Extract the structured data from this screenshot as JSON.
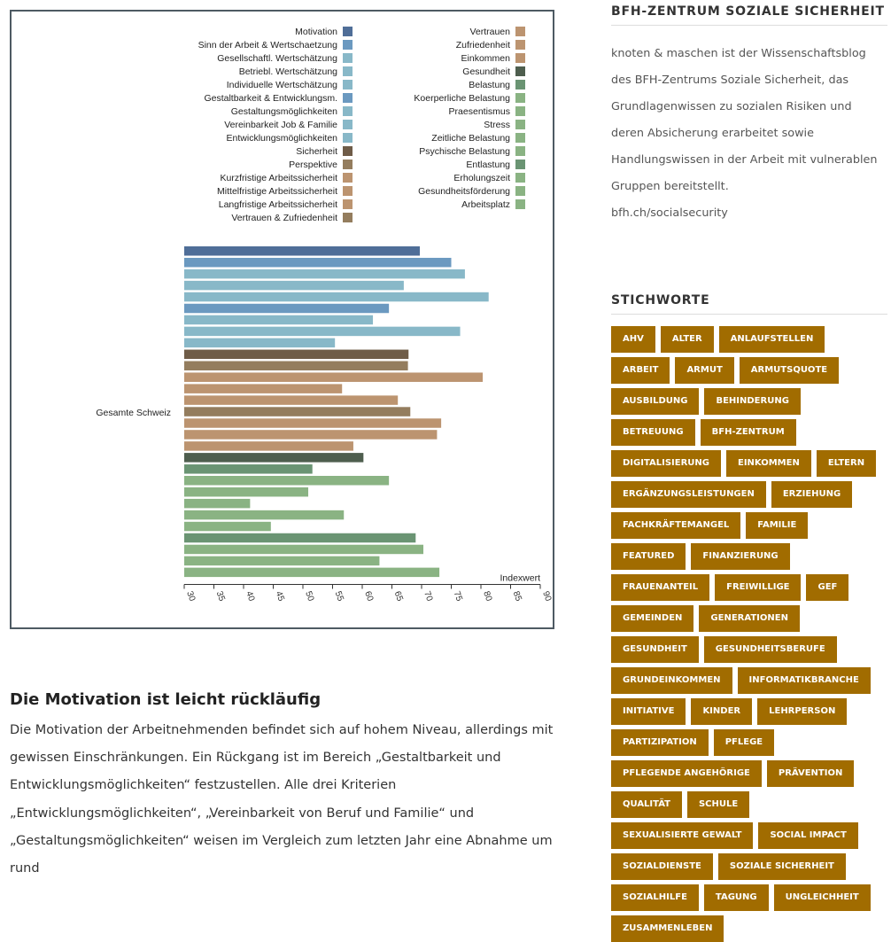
{
  "chart_data": {
    "type": "bar",
    "orientation": "horizontal",
    "y_category": "Gesamte Schweiz",
    "xlabel": "Indexwert",
    "xlim": [
      30,
      90
    ],
    "xticks": [
      "30",
      "35",
      "40",
      "45",
      "50",
      "55",
      "60",
      "65",
      "70",
      "75",
      "80",
      "85",
      "90"
    ],
    "grid": false,
    "legend_position": "top",
    "series": [
      {
        "name": "Motivation",
        "value": 69.7,
        "color": "#4f6e98"
      },
      {
        "name": "Sinn der Arbeit & Wertschaetzung",
        "value": 75,
        "color": "#6b99c0"
      },
      {
        "name": "Gesellschaftl. Wertschätzung",
        "value": 77.3,
        "color": "#88b8c8"
      },
      {
        "name": "Betriebl. Wertschätzung",
        "value": 67,
        "color": "#88b8c8"
      },
      {
        "name": "Individuelle Wertschätzung",
        "value": 81.3,
        "color": "#88b8c8"
      },
      {
        "name": "Gestaltbarkeit & Entwicklungsm.",
        "value": 64.5,
        "color": "#6b99c0"
      },
      {
        "name": "Gestaltungsmöglichkeiten",
        "value": 61.8,
        "color": "#88b8c8"
      },
      {
        "name": "Vereinbarkeit Job & Familie",
        "value": 76.5,
        "color": "#88b8c8"
      },
      {
        "name": "Entwicklungsmöglichkeiten",
        "value": 55.4,
        "color": "#88b8c8"
      },
      {
        "name": "Sicherheit",
        "value": 67.8,
        "color": "#6f5c48"
      },
      {
        "name": "Perspektive",
        "value": 67.7,
        "color": "#947d5e"
      },
      {
        "name": "Kurzfristige Arbeitssicherheit",
        "value": 80.3,
        "color": "#bc9470"
      },
      {
        "name": "Mittelfristige Arbeitssicherheit",
        "value": 56.6,
        "color": "#bc9470"
      },
      {
        "name": "Langfristige Arbeitssicherheit",
        "value": 66,
        "color": "#bc9470"
      },
      {
        "name": "Vertrauen & Zufriedenheit",
        "value": 68.1,
        "color": "#947d5e"
      },
      {
        "name": "Vertrauen",
        "value": 73.3,
        "color": "#bc9470"
      },
      {
        "name": "Zufriedenheit",
        "value": 72.6,
        "color": "#bc9470"
      },
      {
        "name": "Einkommen",
        "value": 58.5,
        "color": "#bc9470"
      },
      {
        "name": "Gesundheit",
        "value": 60.2,
        "color": "#4e5e4e"
      },
      {
        "name": "Belastung",
        "value": 51.6,
        "color": "#6a9473"
      },
      {
        "name": "Koerperliche Belastung",
        "value": 64.5,
        "color": "#8ab383"
      },
      {
        "name": "Praesentismus",
        "value": 50.9,
        "color": "#8ab383"
      },
      {
        "name": "Stress",
        "value": 41.1,
        "color": "#8ab383"
      },
      {
        "name": "Zeitliche Belastung",
        "value": 56.9,
        "color": "#8ab383"
      },
      {
        "name": "Psychische Belastung",
        "value": 44.6,
        "color": "#8ab383"
      },
      {
        "name": "Entlastung",
        "value": 69,
        "color": "#6a9473"
      },
      {
        "name": "Erholungszeit",
        "value": 70.3,
        "color": "#8ab383"
      },
      {
        "name": "Gesundheitsförderung",
        "value": 62.9,
        "color": "#8ab383"
      },
      {
        "name": "Arbeitsplatz",
        "value": 73,
        "color": "#8ab383"
      }
    ]
  },
  "article": {
    "heading": "Die Motivation ist leicht rückläufig",
    "body": "Die Motivation der Arbeitnehmenden befindet sich auf hohem Niveau, allerdings mit gewissen Einschränkungen. Ein Rückgang ist im Bereich „Gestaltbarkeit und Entwicklungsmöglichkeiten“ festzustellen. Alle drei Kriterien „Entwicklungsmöglichkeiten“, „Vereinbarkeit von Beruf und Familie“ und „Gestaltungsmöglichkeiten“ weisen im Vergleich zum letzten Jahr eine Abnahme um rund"
  },
  "sidebar": {
    "about_heading": "BFH-ZENTRUM SOZIALE SICHERHEIT",
    "about_text": "knoten & maschen ist der Wissenschaftsblog des BFH-Zentrums Soziale Sicherheit, das Grundlagenwissen zu sozialen Risiken und deren Absicherung erarbeitet sowie Handlungswissen in der Arbeit mit vulnerablen Gruppen bereitstellt.",
    "about_link": "bfh.ch/socialsecurity",
    "tags_heading": "STICHWORTE",
    "tag_color": "#a16c00",
    "tags": [
      "AHV",
      "ALTER",
      "ANLAUFSTELLEN",
      "ARBEIT",
      "ARMUT",
      "ARMUTSQUOTE",
      "AUSBILDUNG",
      "BEHINDERUNG",
      "BETREUUNG",
      "BFH-ZENTRUM",
      "DIGITALISIERUNG",
      "EINKOMMEN",
      "ELTERN",
      "ERGÄNZUNGSLEISTUNGEN",
      "ERZIEHUNG",
      "FACHKRÄFTEMANGEL",
      "FAMILIE",
      "FEATURED",
      "FINANZIERUNG",
      "FRAUENANTEIL",
      "FREIWILLIGE",
      "GEF",
      "GEMEINDEN",
      "GENERATIONEN",
      "GESUNDHEIT",
      "GESUNDHEITSBERUFE",
      "GRUNDEINKOMMEN",
      "INFORMATIKBRANCHE",
      "INITIATIVE",
      "KINDER",
      "LEHRPERSON",
      "PARTIZIPATION",
      "PFLEGE",
      "PFLEGENDE ANGEHÖRIGE",
      "PRÄVENTION",
      "QUALITÄT",
      "SCHULE",
      "SEXUALISIERTE GEWALT",
      "SOCIAL IMPACT",
      "SOZIALDIENSTE",
      "SOZIALE SICHERHEIT",
      "SOZIALHILFE",
      "TAGUNG",
      "UNGLEICHHEIT",
      "ZUSAMMENLEBEN"
    ]
  }
}
